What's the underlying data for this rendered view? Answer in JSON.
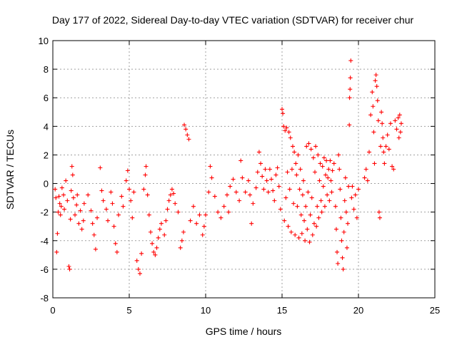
{
  "chart_data": {
    "type": "scatter",
    "title": "Day 177 of 2022, Sidereal Day-to-day VTEC variation (SDTVAR) for receiver chur",
    "xlabel": "GPS time / hours",
    "ylabel": "SDTVAR / TECUs",
    "xlim": [
      0,
      25
    ],
    "ylim": [
      -8,
      10
    ],
    "xticks": [
      "0",
      "5",
      "10",
      "15",
      "20",
      "25"
    ],
    "yticks": [
      "-8",
      "-6",
      "-4",
      "-2",
      "0",
      "2",
      "4",
      "6",
      "8",
      "10"
    ],
    "grid": true,
    "marker": "+",
    "color": "#ff0000",
    "series": [
      {
        "name": "SDTVAR",
        "points": [
          [
            0.15,
            -0.4
          ],
          [
            0.2,
            -1.0
          ],
          [
            0.25,
            -4.8
          ],
          [
            0.3,
            -3.5
          ],
          [
            0.35,
            -2.0
          ],
          [
            0.4,
            -0.9
          ],
          [
            0.45,
            -1.4
          ],
          [
            0.5,
            -2.2
          ],
          [
            0.55,
            -1.6
          ],
          [
            0.6,
            -0.3
          ],
          [
            0.7,
            -0.8
          ],
          [
            0.75,
            -1.8
          ],
          [
            0.85,
            0.2
          ],
          [
            0.95,
            -1.2
          ],
          [
            1.05,
            -5.8
          ],
          [
            1.1,
            -6.0
          ],
          [
            1.15,
            -2.5
          ],
          [
            1.2,
            -0.5
          ],
          [
            1.25,
            1.2
          ],
          [
            1.3,
            0.6
          ],
          [
            1.35,
            -1.0
          ],
          [
            1.45,
            -2.2
          ],
          [
            1.55,
            -1.5
          ],
          [
            1.6,
            -0.8
          ],
          [
            1.7,
            -2.8
          ],
          [
            1.8,
            -1.9
          ],
          [
            1.9,
            -3.2
          ],
          [
            2.0,
            -2.6
          ],
          [
            2.05,
            -1.4
          ],
          [
            2.3,
            -0.8
          ],
          [
            2.5,
            -1.9
          ],
          [
            2.6,
            -2.8
          ],
          [
            2.7,
            -3.6
          ],
          [
            2.8,
            -4.6
          ],
          [
            2.9,
            -2.4
          ],
          [
            3.1,
            1.1
          ],
          [
            3.2,
            -0.5
          ],
          [
            3.3,
            -1.2
          ],
          [
            3.5,
            -1.8
          ],
          [
            3.6,
            -2.6
          ],
          [
            3.8,
            -0.6
          ],
          [
            3.9,
            -1.4
          ],
          [
            4.0,
            -3.0
          ],
          [
            4.1,
            -4.2
          ],
          [
            4.2,
            -4.8
          ],
          [
            4.3,
            -2.2
          ],
          [
            4.5,
            -0.9
          ],
          [
            4.6,
            -1.6
          ],
          [
            4.8,
            0.2
          ],
          [
            4.9,
            0.9
          ],
          [
            5.0,
            -0.4
          ],
          [
            5.1,
            -1.2
          ],
          [
            5.2,
            -2.4
          ],
          [
            5.3,
            -0.6
          ],
          [
            5.5,
            -5.4
          ],
          [
            5.6,
            -6.0
          ],
          [
            5.7,
            -6.3
          ],
          [
            5.8,
            -4.9
          ],
          [
            5.95,
            -0.4
          ],
          [
            6.05,
            0.6
          ],
          [
            6.1,
            1.2
          ],
          [
            6.2,
            -0.8
          ],
          [
            6.3,
            -2.2
          ],
          [
            6.4,
            -3.4
          ],
          [
            6.5,
            -4.2
          ],
          [
            6.6,
            -4.8
          ],
          [
            6.7,
            -5.0
          ],
          [
            6.8,
            -4.5
          ],
          [
            6.9,
            -3.8
          ],
          [
            7.0,
            -3.2
          ],
          [
            7.1,
            -2.8
          ],
          [
            7.3,
            -3.6
          ],
          [
            7.4,
            -2.6
          ],
          [
            7.5,
            -1.8
          ],
          [
            7.6,
            -1.2
          ],
          [
            7.7,
            -0.8
          ],
          [
            7.8,
            -0.4
          ],
          [
            7.9,
            -0.7
          ],
          [
            8.0,
            -1.4
          ],
          [
            8.2,
            -2.0
          ],
          [
            8.35,
            -4.5
          ],
          [
            8.45,
            -4.0
          ],
          [
            8.55,
            -3.4
          ],
          [
            8.6,
            4.1
          ],
          [
            8.7,
            3.8
          ],
          [
            8.8,
            3.4
          ],
          [
            8.9,
            3.1
          ],
          [
            9.0,
            -2.6
          ],
          [
            9.2,
            -1.6
          ],
          [
            9.4,
            -2.8
          ],
          [
            9.6,
            -2.2
          ],
          [
            9.8,
            -3.6
          ],
          [
            9.9,
            -3.0
          ],
          [
            10.0,
            -2.2
          ],
          [
            10.2,
            -0.6
          ],
          [
            10.3,
            1.2
          ],
          [
            10.4,
            0.4
          ],
          [
            10.6,
            -0.9
          ],
          [
            10.8,
            -2.0
          ],
          [
            11.0,
            -2.4
          ],
          [
            11.2,
            -1.6
          ],
          [
            11.4,
            -0.8
          ],
          [
            11.5,
            -2.0
          ],
          [
            11.6,
            -0.2
          ],
          [
            11.8,
            0.3
          ],
          [
            12.0,
            -0.6
          ],
          [
            12.2,
            -1.2
          ],
          [
            12.3,
            1.6
          ],
          [
            12.4,
            0.4
          ],
          [
            12.6,
            -0.6
          ],
          [
            12.8,
            0.2
          ],
          [
            12.9,
            -0.8
          ],
          [
            13.0,
            -2.8
          ],
          [
            13.1,
            -1.4
          ],
          [
            13.3,
            -0.3
          ],
          [
            13.4,
            0.8
          ],
          [
            13.5,
            2.2
          ],
          [
            13.6,
            1.4
          ],
          [
            13.7,
            0.5
          ],
          [
            13.8,
            -0.4
          ],
          [
            13.9,
            1.0
          ],
          [
            14.0,
            0.2
          ],
          [
            14.1,
            -0.6
          ],
          [
            14.2,
            1.0
          ],
          [
            14.3,
            0.3
          ],
          [
            14.4,
            -0.5
          ],
          [
            14.5,
            -1.2
          ],
          [
            14.6,
            0.6
          ],
          [
            14.7,
            1.1
          ],
          [
            14.8,
            -0.2
          ],
          [
            14.9,
            -1.8
          ],
          [
            15.0,
            5.2
          ],
          [
            15.05,
            4.9
          ],
          [
            15.1,
            4.0
          ],
          [
            15.15,
            -2.6
          ],
          [
            15.2,
            3.7
          ],
          [
            15.25,
            -1.0
          ],
          [
            15.3,
            3.9
          ],
          [
            15.35,
            0.8
          ],
          [
            15.4,
            -3.0
          ],
          [
            15.45,
            3.6
          ],
          [
            15.5,
            -0.4
          ],
          [
            15.55,
            3.2
          ],
          [
            15.6,
            -3.4
          ],
          [
            15.65,
            1.0
          ],
          [
            15.7,
            2.6
          ],
          [
            15.75,
            -1.4
          ],
          [
            15.8,
            2.2
          ],
          [
            15.85,
            -3.6
          ],
          [
            15.9,
            1.4
          ],
          [
            15.95,
            0.6
          ],
          [
            16.0,
            -1.6
          ],
          [
            16.05,
            2.0
          ],
          [
            16.1,
            -3.8
          ],
          [
            16.15,
            -0.4
          ],
          [
            16.2,
            1.0
          ],
          [
            16.25,
            -2.2
          ],
          [
            16.3,
            -3.5
          ],
          [
            16.35,
            -0.8
          ],
          [
            16.4,
            0.2
          ],
          [
            16.45,
            -2.6
          ],
          [
            16.5,
            -4.0
          ],
          [
            16.55,
            -1.6
          ],
          [
            16.6,
            2.6
          ],
          [
            16.65,
            -3.2
          ],
          [
            16.7,
            -0.6
          ],
          [
            16.75,
            2.8
          ],
          [
            16.8,
            -4.1
          ],
          [
            16.85,
            -2.2
          ],
          [
            16.9,
            2.4
          ],
          [
            16.95,
            -1.0
          ],
          [
            17.0,
            -3.6
          ],
          [
            17.05,
            1.8
          ],
          [
            17.1,
            -2.8
          ],
          [
            17.15,
            0.8
          ],
          [
            17.2,
            2.6
          ],
          [
            17.25,
            -3.0
          ],
          [
            17.3,
            -1.6
          ],
          [
            17.35,
            2.0
          ],
          [
            17.4,
            -2.4
          ],
          [
            17.45,
            0.2
          ],
          [
            17.5,
            1.4
          ],
          [
            17.55,
            -1.2
          ],
          [
            17.6,
            -2.0
          ],
          [
            17.65,
            1.2
          ],
          [
            17.7,
            -0.2
          ],
          [
            17.75,
            1.8
          ],
          [
            17.8,
            -1.6
          ],
          [
            17.85,
            0.6
          ],
          [
            17.9,
            1.6
          ],
          [
            17.95,
            -0.8
          ],
          [
            18.0,
            0.4
          ],
          [
            18.05,
            1.0
          ],
          [
            18.1,
            -1.2
          ],
          [
            18.15,
            1.6
          ],
          [
            18.2,
            0.2
          ],
          [
            18.25,
            -0.6
          ],
          [
            18.3,
            0.9
          ],
          [
            18.4,
            1.4
          ],
          [
            18.5,
            -1.6
          ],
          [
            18.55,
            -3.2
          ],
          [
            18.6,
            -4.8
          ],
          [
            18.65,
            -5.6
          ],
          [
            18.7,
            2.0
          ],
          [
            18.75,
            1.0
          ],
          [
            18.8,
            -0.4
          ],
          [
            18.85,
            -2.4
          ],
          [
            18.9,
            -4.0
          ],
          [
            18.95,
            -5.2
          ],
          [
            19.0,
            -6.0
          ],
          [
            19.05,
            -3.4
          ],
          [
            19.1,
            -1.2
          ],
          [
            19.15,
            0.4
          ],
          [
            19.2,
            -2.0
          ],
          [
            19.25,
            -4.5
          ],
          [
            19.3,
            -2.8
          ],
          [
            19.35,
            -0.2
          ],
          [
            19.4,
            4.1
          ],
          [
            19.42,
            6.0
          ],
          [
            19.45,
            6.6
          ],
          [
            19.47,
            7.4
          ],
          [
            19.5,
            8.6
          ],
          [
            19.55,
            -1.0
          ],
          [
            19.6,
            -0.2
          ],
          [
            19.7,
            -1.8
          ],
          [
            19.8,
            -0.8
          ],
          [
            19.9,
            -2.4
          ],
          [
            20.0,
            -0.4
          ],
          [
            20.4,
            0.4
          ],
          [
            20.5,
            1.0
          ],
          [
            20.6,
            0.2
          ],
          [
            20.7,
            2.2
          ],
          [
            20.8,
            4.8
          ],
          [
            20.9,
            6.4
          ],
          [
            20.95,
            5.4
          ],
          [
            21.0,
            3.6
          ],
          [
            21.05,
            1.4
          ],
          [
            21.1,
            7.2
          ],
          [
            21.15,
            7.6
          ],
          [
            21.2,
            6.8
          ],
          [
            21.25,
            5.8
          ],
          [
            21.3,
            4.4
          ],
          [
            21.35,
            -2.0
          ],
          [
            21.4,
            -2.4
          ],
          [
            21.45,
            2.6
          ],
          [
            21.5,
            5.0
          ],
          [
            21.55,
            4.2
          ],
          [
            21.6,
            3.2
          ],
          [
            21.65,
            2.2
          ],
          [
            21.7,
            1.4
          ],
          [
            21.8,
            2.6
          ],
          [
            21.9,
            3.4
          ],
          [
            22.0,
            2.4
          ],
          [
            22.1,
            4.2
          ],
          [
            22.2,
            1.2
          ],
          [
            22.3,
            1.0
          ],
          [
            22.4,
            4.4
          ],
          [
            22.5,
            3.8
          ],
          [
            22.6,
            4.6
          ],
          [
            22.65,
            3.2
          ],
          [
            22.7,
            4.8
          ],
          [
            22.75,
            3.6
          ],
          [
            22.8,
            4.2
          ]
        ]
      }
    ]
  }
}
